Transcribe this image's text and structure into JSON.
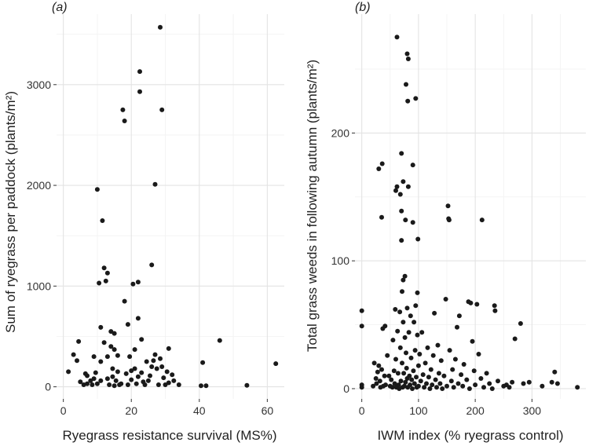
{
  "chart_data": [
    {
      "type": "scatter",
      "panel_label": "(a)",
      "xlabel": "Ryegrass resistance survival (MS%)",
      "ylabel": "Sum of ryegrass per paddock (plants/m²)",
      "xlim": [
        -2,
        65
      ],
      "ylim": [
        -120,
        3700
      ],
      "xticks": [
        0,
        20,
        40,
        60
      ],
      "yticks": [
        0,
        1000,
        2000,
        3000
      ],
      "grid": true,
      "points": [
        [
          1.5,
          150
        ],
        [
          3,
          320
        ],
        [
          4,
          260
        ],
        [
          4.5,
          450
        ],
        [
          5,
          50
        ],
        [
          6,
          20
        ],
        [
          6.5,
          130
        ],
        [
          7,
          110
        ],
        [
          7,
          30
        ],
        [
          8,
          60
        ],
        [
          8.5,
          20
        ],
        [
          9,
          300
        ],
        [
          9,
          80
        ],
        [
          9.5,
          140
        ],
        [
          10,
          1960
        ],
        [
          10,
          30
        ],
        [
          10.5,
          1030
        ],
        [
          11,
          590
        ],
        [
          11,
          250
        ],
        [
          11,
          60
        ],
        [
          11.5,
          1650
        ],
        [
          12,
          1180
        ],
        [
          12,
          440
        ],
        [
          12.5,
          1050
        ],
        [
          13,
          1130
        ],
        [
          13,
          300
        ],
        [
          13,
          80
        ],
        [
          13.5,
          20
        ],
        [
          14,
          550
        ],
        [
          14,
          400
        ],
        [
          14.5,
          180
        ],
        [
          14.5,
          100
        ],
        [
          15,
          530
        ],
        [
          15,
          370
        ],
        [
          15,
          10
        ],
        [
          15.5,
          60
        ],
        [
          16,
          310
        ],
        [
          16,
          150
        ],
        [
          16.5,
          20
        ],
        [
          17,
          30
        ],
        [
          17.5,
          2750
        ],
        [
          18,
          2640
        ],
        [
          18,
          850
        ],
        [
          18.5,
          130
        ],
        [
          19,
          620
        ],
        [
          19,
          20
        ],
        [
          19.5,
          300
        ],
        [
          20,
          160
        ],
        [
          20,
          70
        ],
        [
          20.5,
          1020
        ],
        [
          21,
          370
        ],
        [
          21,
          180
        ],
        [
          21.5,
          30
        ],
        [
          22,
          680
        ],
        [
          22,
          1040
        ],
        [
          22,
          100
        ],
        [
          22.5,
          3130
        ],
        [
          22.5,
          2930
        ],
        [
          23,
          470
        ],
        [
          23,
          140
        ],
        [
          23.5,
          50
        ],
        [
          24,
          20
        ],
        [
          24.5,
          250
        ],
        [
          25,
          60
        ],
        [
          25.5,
          110
        ],
        [
          26,
          1210
        ],
        [
          26,
          200
        ],
        [
          26.5,
          260
        ],
        [
          27,
          2010
        ],
        [
          27,
          320
        ],
        [
          27.5,
          180
        ],
        [
          28,
          20
        ],
        [
          28.5,
          3570
        ],
        [
          28.5,
          280
        ],
        [
          29,
          2750
        ],
        [
          29,
          200
        ],
        [
          29.5,
          90
        ],
        [
          30,
          20
        ],
        [
          30.5,
          150
        ],
        [
          31,
          380
        ],
        [
          31,
          40
        ],
        [
          32,
          120
        ],
        [
          32.5,
          60
        ],
        [
          34,
          20
        ],
        [
          40.5,
          10
        ],
        [
          41,
          240
        ],
        [
          42,
          10
        ],
        [
          46,
          460
        ],
        [
          54,
          15
        ],
        [
          62.5,
          230
        ]
      ]
    },
    {
      "type": "scatter",
      "panel_label": "(b)",
      "xlabel": "IWM index (% ryegrass control)",
      "ylabel": "Total grass weeds in following autumn (plants/m²)",
      "xlim": [
        -12,
        395
      ],
      "ylim": [
        -8,
        293
      ],
      "xticks": [
        0,
        100,
        200,
        300
      ],
      "yticks": [
        0,
        100,
        200
      ],
      "grid": true,
      "points": [
        [
          0,
          61
        ],
        [
          0,
          49
        ],
        [
          0,
          3
        ],
        [
          0,
          1
        ],
        [
          20,
          2
        ],
        [
          22,
          20
        ],
        [
          25,
          8
        ],
        [
          26,
          4
        ],
        [
          28,
          13
        ],
        [
          30,
          172
        ],
        [
          30,
          18
        ],
        [
          32,
          6
        ],
        [
          33,
          1
        ],
        [
          35,
          134
        ],
        [
          35,
          15
        ],
        [
          36,
          176
        ],
        [
          37,
          47
        ],
        [
          38,
          2
        ],
        [
          40,
          10
        ],
        [
          41,
          49
        ],
        [
          42,
          3
        ],
        [
          45,
          26
        ],
        [
          48,
          10
        ],
        [
          50,
          2
        ],
        [
          52,
          7
        ],
        [
          54,
          1
        ],
        [
          55,
          38
        ],
        [
          57,
          14
        ],
        [
          58,
          4
        ],
        [
          59,
          62
        ],
        [
          60,
          155
        ],
        [
          60,
          23
        ],
        [
          61,
          1
        ],
        [
          62,
          275
        ],
        [
          62,
          158
        ],
        [
          63,
          45
        ],
        [
          64,
          12
        ],
        [
          65,
          3
        ],
        [
          66,
          0
        ],
        [
          67,
          60
        ],
        [
          68,
          152
        ],
        [
          68,
          32
        ],
        [
          69,
          6
        ],
        [
          70,
          184
        ],
        [
          70,
          139
        ],
        [
          70,
          116
        ],
        [
          71,
          76
        ],
        [
          71,
          20
        ],
        [
          72,
          1
        ],
        [
          73,
          162
        ],
        [
          73,
          85
        ],
        [
          73,
          52
        ],
        [
          74,
          12
        ],
        [
          75,
          2
        ],
        [
          76,
          88
        ],
        [
          76,
          40
        ],
        [
          77,
          132
        ],
        [
          77,
          5
        ],
        [
          78,
          238
        ],
        [
          78,
          28
        ],
        [
          79,
          16
        ],
        [
          80,
          262
        ],
        [
          80,
          63
        ],
        [
          80,
          8
        ],
        [
          81,
          225
        ],
        [
          81,
          1
        ],
        [
          82,
          258
        ],
        [
          82,
          158
        ],
        [
          83,
          44
        ],
        [
          84,
          10
        ],
        [
          85,
          3
        ],
        [
          86,
          57
        ],
        [
          87,
          24
        ],
        [
          88,
          7
        ],
        [
          89,
          0
        ],
        [
          90,
          175
        ],
        [
          90,
          130
        ],
        [
          91,
          14
        ],
        [
          92,
          52
        ],
        [
          93,
          4
        ],
        [
          94,
          30
        ],
        [
          95,
          227
        ],
        [
          95,
          65
        ],
        [
          96,
          9
        ],
        [
          97,
          1
        ],
        [
          98,
          75
        ],
        [
          98,
          42
        ],
        [
          99,
          117
        ],
        [
          100,
          18
        ],
        [
          100,
          2
        ],
        [
          102,
          27
        ],
        [
          104,
          6
        ],
        [
          106,
          44
        ],
        [
          108,
          11
        ],
        [
          110,
          1
        ],
        [
          112,
          20
        ],
        [
          114,
          4
        ],
        [
          116,
          32
        ],
        [
          118,
          9
        ],
        [
          120,
          0
        ],
        [
          122,
          15
        ],
        [
          124,
          3
        ],
        [
          126,
          26
        ],
        [
          128,
          59
        ],
        [
          130,
          7
        ],
        [
          132,
          1
        ],
        [
          134,
          34
        ],
        [
          136,
          12
        ],
        [
          138,
          4
        ],
        [
          140,
          22
        ],
        [
          142,
          0
        ],
        [
          145,
          10
        ],
        [
          148,
          70
        ],
        [
          150,
          2
        ],
        [
          152,
          143
        ],
        [
          153,
          133
        ],
        [
          154,
          132
        ],
        [
          155,
          30
        ],
        [
          158,
          6
        ],
        [
          160,
          15
        ],
        [
          162,
          1
        ],
        [
          165,
          23
        ],
        [
          168,
          48
        ],
        [
          170,
          4
        ],
        [
          172,
          57
        ],
        [
          175,
          11
        ],
        [
          178,
          2
        ],
        [
          180,
          19
        ],
        [
          185,
          7
        ],
        [
          188,
          68
        ],
        [
          190,
          0
        ],
        [
          192,
          67
        ],
        [
          195,
          37
        ],
        [
          198,
          14
        ],
        [
          200,
          3
        ],
        [
          203,
          66
        ],
        [
          206,
          27
        ],
        [
          210,
          8
        ],
        [
          212,
          132
        ],
        [
          215,
          1
        ],
        [
          220,
          12
        ],
        [
          225,
          4
        ],
        [
          230,
          0
        ],
        [
          234,
          65
        ],
        [
          235,
          61
        ],
        [
          240,
          6
        ],
        [
          250,
          2
        ],
        [
          255,
          3
        ],
        [
          260,
          1
        ],
        [
          265,
          5
        ],
        [
          270,
          39
        ],
        [
          280,
          51
        ],
        [
          285,
          4
        ],
        [
          295,
          5
        ],
        [
          318,
          2
        ],
        [
          335,
          5
        ],
        [
          340,
          13
        ],
        [
          345,
          4
        ],
        [
          380,
          1
        ]
      ]
    }
  ]
}
